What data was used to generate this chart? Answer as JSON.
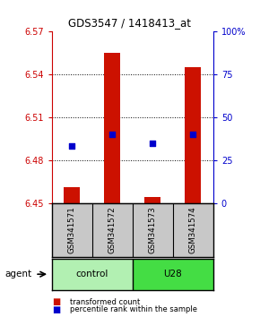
{
  "title": "GDS3547 / 1418413_at",
  "samples": [
    "GSM341571",
    "GSM341572",
    "GSM341573",
    "GSM341574"
  ],
  "red_bar_values": [
    6.4608,
    6.555,
    6.454,
    6.545
  ],
  "blue_dot_values": [
    33,
    40,
    35,
    40
  ],
  "ylim_left": [
    6.45,
    6.57
  ],
  "ylim_right": [
    0,
    100
  ],
  "left_yticks": [
    6.45,
    6.48,
    6.51,
    6.54,
    6.57
  ],
  "right_yticks": [
    0,
    25,
    50,
    75,
    100
  ],
  "left_ytick_labels": [
    "6.45",
    "6.48",
    "6.51",
    "6.54",
    "6.57"
  ],
  "right_ytick_labels": [
    "0",
    "25",
    "50",
    "75",
    "100%"
  ],
  "left_axis_color": "#cc0000",
  "right_axis_color": "#0000cc",
  "bar_color": "#cc1100",
  "dot_color": "#0000cc",
  "bar_width": 0.4,
  "background_color": "#ffffff",
  "sample_box_color": "#c8c8c8",
  "control_color": "#b2f0b2",
  "u28_color": "#44dd44",
  "grid_yticks": [
    6.48,
    6.51,
    6.54
  ]
}
